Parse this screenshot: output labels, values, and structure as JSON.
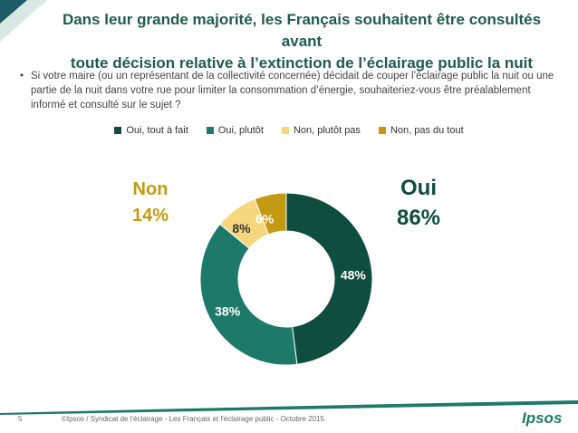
{
  "slide": {
    "title_line1": "Dans leur grande majorité, les Français souhaitent être consultés avant",
    "title_line2": "toute décision relative à l’extinction de l’éclairage public la nuit",
    "bullet": "•",
    "question": "Si votre maire (ou un représentant de la collectivité concernée) décidait de couper l’éclairage public la nuit ou une partie de la nuit dans votre rue pour limiter la consommation d’énergie, souhaiteriez-vous être préalablement informé et consulté sur le sujet ?",
    "non_label": "Non",
    "non_value": "14%",
    "oui_label": "Oui",
    "oui_value": "86%",
    "page_number": "5",
    "footer": "©Ipsos / Syndicat de l'éclairage - Les Français et l'éclairage public - Octobre 2015",
    "logo": "Ipsos",
    "colors": {
      "title": "#1f5b4f",
      "oui": "#0e4d3f",
      "non": "#c49a12",
      "accent_bar": "#1d7a6b"
    }
  },
  "chart_data": {
    "type": "pie",
    "style": "donut",
    "legend_position": "top",
    "categories": [
      "Oui, tout à fait",
      "Oui, plutôt",
      "Non, plutôt pas",
      "Non, pas du tout"
    ],
    "values": [
      48,
      38,
      8,
      6
    ],
    "data_labels": [
      "48%",
      "38%",
      "8%",
      "6%"
    ],
    "colors": [
      "#0e4d3f",
      "#1d7a6b",
      "#f7d77e",
      "#c49a12"
    ],
    "label_colors": [
      "#ffffff",
      "#ffffff",
      "#333333",
      "#ffffff"
    ]
  }
}
